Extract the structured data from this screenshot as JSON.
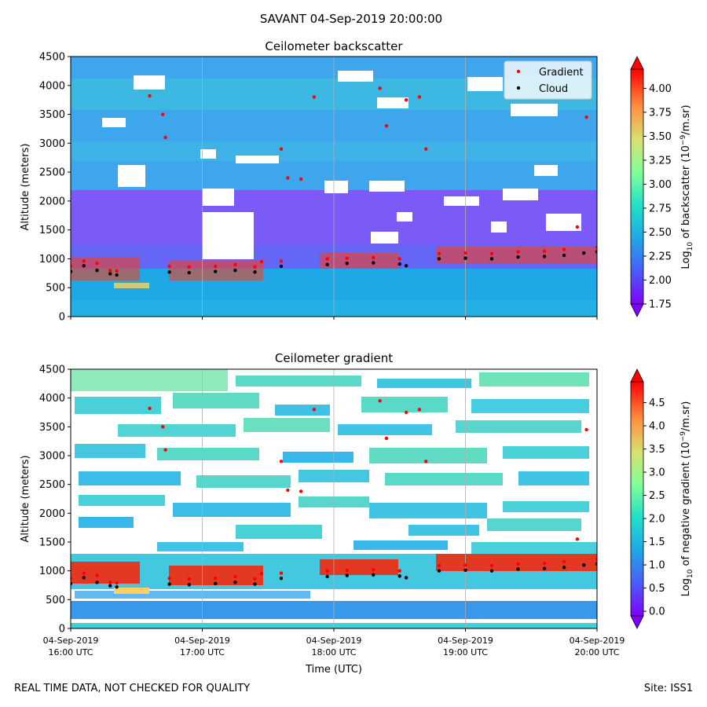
{
  "suptitle": "SAVANT 04-Sep-2019 20:00:00",
  "footer": {
    "left": "REAL TIME DATA, NOT CHECKED FOR QUALITY",
    "right": "Site: ISS1"
  },
  "colors": {
    "gradient_marker": "#ff0000",
    "cloud_marker": "#000000",
    "grid": "#b0b0b0"
  },
  "chart_data": [
    {
      "type": "heatmap",
      "title": "Ceilometer backscatter",
      "ylabel": "Altitude (meters)",
      "xlabel": "",
      "xlim": [
        16.0,
        20.0
      ],
      "ylim": [
        0,
        4500
      ],
      "y_ticks": [
        "0",
        "500",
        "1000",
        "1500",
        "2000",
        "2500",
        "3000",
        "3500",
        "4000",
        "4500"
      ],
      "x_ticks": [
        {
          "date": "04-Sep-2019",
          "time": "16:00 UTC"
        },
        {
          "date": "04-Sep-2019",
          "time": "17:00 UTC"
        },
        {
          "date": "04-Sep-2019",
          "time": "18:00 UTC"
        },
        {
          "date": "04-Sep-2019",
          "time": "19:00 UTC"
        },
        {
          "date": "04-Sep-2019",
          "time": "20:00 UTC"
        }
      ],
      "x_tick_labels_visible": false,
      "legend": {
        "position": "top-right",
        "entries": [
          "Gradient",
          "Cloud"
        ]
      },
      "colorbar": {
        "label": "Log10 of backscatter (10^-9/m.sr)",
        "label_main": "Log",
        "label_sub": "10",
        "label_mid": " of backscatter (10",
        "label_sup": "−9",
        "label_end": "/m.sr)",
        "range": [
          1.75,
          4.2
        ],
        "ticks": [
          "1.75",
          "2.00",
          "2.25",
          "2.50",
          "2.75",
          "3.00",
          "3.25",
          "3.50",
          "3.75",
          "4.00"
        ],
        "tick_values": [
          1.75,
          2.0,
          2.25,
          2.5,
          2.75,
          3.0,
          3.25,
          3.5,
          3.75,
          4.0
        ]
      },
      "cloud_series": [
        {
          "x": 16.0,
          "y": 780
        },
        {
          "x": 16.1,
          "y": 880
        },
        {
          "x": 16.2,
          "y": 800
        },
        {
          "x": 16.3,
          "y": 740
        },
        {
          "x": 16.35,
          "y": 720
        },
        {
          "x": 16.75,
          "y": 770
        },
        {
          "x": 16.9,
          "y": 760
        },
        {
          "x": 17.1,
          "y": 780
        },
        {
          "x": 17.25,
          "y": 800
        },
        {
          "x": 17.4,
          "y": 770
        },
        {
          "x": 17.6,
          "y": 870
        },
        {
          "x": 17.95,
          "y": 900
        },
        {
          "x": 18.1,
          "y": 920
        },
        {
          "x": 18.3,
          "y": 930
        },
        {
          "x": 18.5,
          "y": 910
        },
        {
          "x": 18.55,
          "y": 880
        },
        {
          "x": 18.8,
          "y": 1000
        },
        {
          "x": 19.0,
          "y": 1010
        },
        {
          "x": 19.2,
          "y": 1000
        },
        {
          "x": 19.4,
          "y": 1030
        },
        {
          "x": 19.6,
          "y": 1040
        },
        {
          "x": 19.75,
          "y": 1060
        },
        {
          "x": 19.9,
          "y": 1100
        },
        {
          "x": 20.0,
          "y": 1120
        }
      ],
      "gradient_series": [
        {
          "x": 16.0,
          "y": 870
        },
        {
          "x": 16.1,
          "y": 960
        },
        {
          "x": 16.2,
          "y": 920
        },
        {
          "x": 16.3,
          "y": 800
        },
        {
          "x": 16.35,
          "y": 790
        },
        {
          "x": 16.6,
          "y": 3820
        },
        {
          "x": 16.7,
          "y": 3500
        },
        {
          "x": 16.72,
          "y": 3100
        },
        {
          "x": 16.75,
          "y": 870
        },
        {
          "x": 16.9,
          "y": 860
        },
        {
          "x": 17.1,
          "y": 870
        },
        {
          "x": 17.25,
          "y": 900
        },
        {
          "x": 17.4,
          "y": 860
        },
        {
          "x": 17.45,
          "y": 950
        },
        {
          "x": 17.6,
          "y": 960
        },
        {
          "x": 17.6,
          "y": 2900
        },
        {
          "x": 17.65,
          "y": 2400
        },
        {
          "x": 17.75,
          "y": 2380
        },
        {
          "x": 17.85,
          "y": 3800
        },
        {
          "x": 17.95,
          "y": 1000
        },
        {
          "x": 18.1,
          "y": 1010
        },
        {
          "x": 18.3,
          "y": 1020
        },
        {
          "x": 18.35,
          "y": 3950
        },
        {
          "x": 18.4,
          "y": 3300
        },
        {
          "x": 18.5,
          "y": 1000
        },
        {
          "x": 18.55,
          "y": 3750
        },
        {
          "x": 18.65,
          "y": 3800
        },
        {
          "x": 18.7,
          "y": 2900
        },
        {
          "x": 18.8,
          "y": 1090
        },
        {
          "x": 19.0,
          "y": 1100
        },
        {
          "x": 19.2,
          "y": 1090
        },
        {
          "x": 19.4,
          "y": 1120
        },
        {
          "x": 19.6,
          "y": 1130
        },
        {
          "x": 19.75,
          "y": 1160
        },
        {
          "x": 19.85,
          "y": 1550
        },
        {
          "x": 19.92,
          "y": 3450
        },
        {
          "x": 20.0,
          "y": 1200
        }
      ]
    },
    {
      "type": "heatmap",
      "title": "Ceilometer gradient",
      "ylabel": "Altitude (meters)",
      "xlabel": "Time (UTC)",
      "xlim": [
        16.0,
        20.0
      ],
      "ylim": [
        0,
        4500
      ],
      "y_ticks": [
        "0",
        "500",
        "1000",
        "1500",
        "2000",
        "2500",
        "3000",
        "3500",
        "4000",
        "4500"
      ],
      "x_ticks": [
        {
          "date": "04-Sep-2019",
          "time": "16:00 UTC"
        },
        {
          "date": "04-Sep-2019",
          "time": "17:00 UTC"
        },
        {
          "date": "04-Sep-2019",
          "time": "18:00 UTC"
        },
        {
          "date": "04-Sep-2019",
          "time": "19:00 UTC"
        },
        {
          "date": "04-Sep-2019",
          "time": "20:00 UTC"
        }
      ],
      "x_tick_labels_visible": true,
      "colorbar": {
        "label": "Log10 of negative gradient (10^-9/m.sr)",
        "label_main": "Log",
        "label_sub": "10",
        "label_mid": " of negative gradient (10",
        "label_sup": "−9",
        "label_end": "/m.sr)",
        "range": [
          -0.1,
          4.95
        ],
        "ticks": [
          "0.0",
          "0.5",
          "1.0",
          "1.5",
          "2.0",
          "2.5",
          "3.0",
          "3.5",
          "4.0",
          "4.5"
        ],
        "tick_values": [
          0.0,
          0.5,
          1.0,
          1.5,
          2.0,
          2.5,
          3.0,
          3.5,
          4.0,
          4.5
        ]
      },
      "cloud_series": [
        {
          "x": 16.0,
          "y": 780
        },
        {
          "x": 16.1,
          "y": 880
        },
        {
          "x": 16.2,
          "y": 800
        },
        {
          "x": 16.3,
          "y": 740
        },
        {
          "x": 16.35,
          "y": 720
        },
        {
          "x": 16.75,
          "y": 770
        },
        {
          "x": 16.9,
          "y": 760
        },
        {
          "x": 17.1,
          "y": 780
        },
        {
          "x": 17.25,
          "y": 800
        },
        {
          "x": 17.4,
          "y": 770
        },
        {
          "x": 17.6,
          "y": 870
        },
        {
          "x": 17.95,
          "y": 900
        },
        {
          "x": 18.1,
          "y": 920
        },
        {
          "x": 18.3,
          "y": 930
        },
        {
          "x": 18.5,
          "y": 910
        },
        {
          "x": 18.55,
          "y": 880
        },
        {
          "x": 18.8,
          "y": 1000
        },
        {
          "x": 19.0,
          "y": 1010
        },
        {
          "x": 19.2,
          "y": 1000
        },
        {
          "x": 19.4,
          "y": 1030
        },
        {
          "x": 19.6,
          "y": 1040
        },
        {
          "x": 19.75,
          "y": 1060
        },
        {
          "x": 19.9,
          "y": 1100
        },
        {
          "x": 20.0,
          "y": 1120
        }
      ],
      "gradient_series": [
        {
          "x": 16.0,
          "y": 870
        },
        {
          "x": 16.1,
          "y": 960
        },
        {
          "x": 16.2,
          "y": 920
        },
        {
          "x": 16.3,
          "y": 800
        },
        {
          "x": 16.35,
          "y": 790
        },
        {
          "x": 16.6,
          "y": 3820
        },
        {
          "x": 16.7,
          "y": 3500
        },
        {
          "x": 16.72,
          "y": 3100
        },
        {
          "x": 16.75,
          "y": 870
        },
        {
          "x": 16.9,
          "y": 860
        },
        {
          "x": 17.1,
          "y": 870
        },
        {
          "x": 17.25,
          "y": 900
        },
        {
          "x": 17.4,
          "y": 860
        },
        {
          "x": 17.45,
          "y": 950
        },
        {
          "x": 17.6,
          "y": 960
        },
        {
          "x": 17.6,
          "y": 2900
        },
        {
          "x": 17.65,
          "y": 2400
        },
        {
          "x": 17.75,
          "y": 2380
        },
        {
          "x": 17.85,
          "y": 3800
        },
        {
          "x": 17.95,
          "y": 1000
        },
        {
          "x": 18.1,
          "y": 1010
        },
        {
          "x": 18.3,
          "y": 1020
        },
        {
          "x": 18.35,
          "y": 3950
        },
        {
          "x": 18.4,
          "y": 3300
        },
        {
          "x": 18.5,
          "y": 1000
        },
        {
          "x": 18.55,
          "y": 3750
        },
        {
          "x": 18.65,
          "y": 3800
        },
        {
          "x": 18.7,
          "y": 2900
        },
        {
          "x": 18.8,
          "y": 1090
        },
        {
          "x": 19.0,
          "y": 1100
        },
        {
          "x": 19.2,
          "y": 1090
        },
        {
          "x": 19.4,
          "y": 1120
        },
        {
          "x": 19.6,
          "y": 1130
        },
        {
          "x": 19.75,
          "y": 1160
        },
        {
          "x": 19.85,
          "y": 1550
        },
        {
          "x": 19.92,
          "y": 3450
        },
        {
          "x": 20.0,
          "y": 1200
        }
      ]
    }
  ]
}
